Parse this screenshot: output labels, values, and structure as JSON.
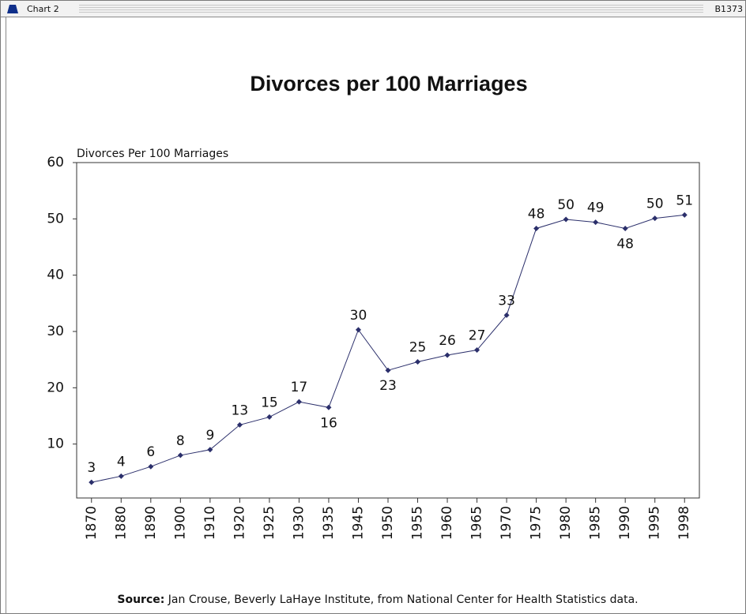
{
  "window": {
    "title": "Chart 2",
    "id": "B1373"
  },
  "chart_data": {
    "type": "line",
    "title": "Divorces per 100 Marriages",
    "y_label": "Divorces Per 100 Marriages",
    "source_label": "Source:",
    "source": "Jan Crouse, Beverly LaHaye Institute, from National Center for Health Statistics data.",
    "categories": [
      "1870",
      "1880",
      "1890",
      "1900",
      "1910",
      "1920",
      "1925",
      "1930",
      "1935",
      "1945",
      "1950",
      "1955",
      "1960",
      "1965",
      "1970",
      "1975",
      "1980",
      "1985",
      "1990",
      "1995",
      "1998"
    ],
    "series": [
      {
        "name": "Divorces Per 100 Marriages",
        "color": "#2b2f6b",
        "values": [
          3.2,
          4.3,
          6.0,
          8.0,
          9.0,
          13.4,
          14.8,
          17.5,
          16.5,
          30.3,
          23.1,
          24.6,
          25.8,
          26.7,
          32.9,
          48.3,
          49.9,
          49.4,
          48.3,
          50.1,
          50.7
        ],
        "value_labels": [
          "3",
          "4",
          "6",
          "8",
          "9",
          "13",
          "15",
          "17",
          "16",
          "30",
          "23",
          "25",
          "26",
          "27",
          "33",
          "48",
          "50",
          "49",
          "48",
          "50",
          "51"
        ]
      }
    ],
    "ylim": [
      0,
      60
    ],
    "yticks": [
      10,
      20,
      30,
      40,
      50,
      60
    ],
    "grid": false
  }
}
